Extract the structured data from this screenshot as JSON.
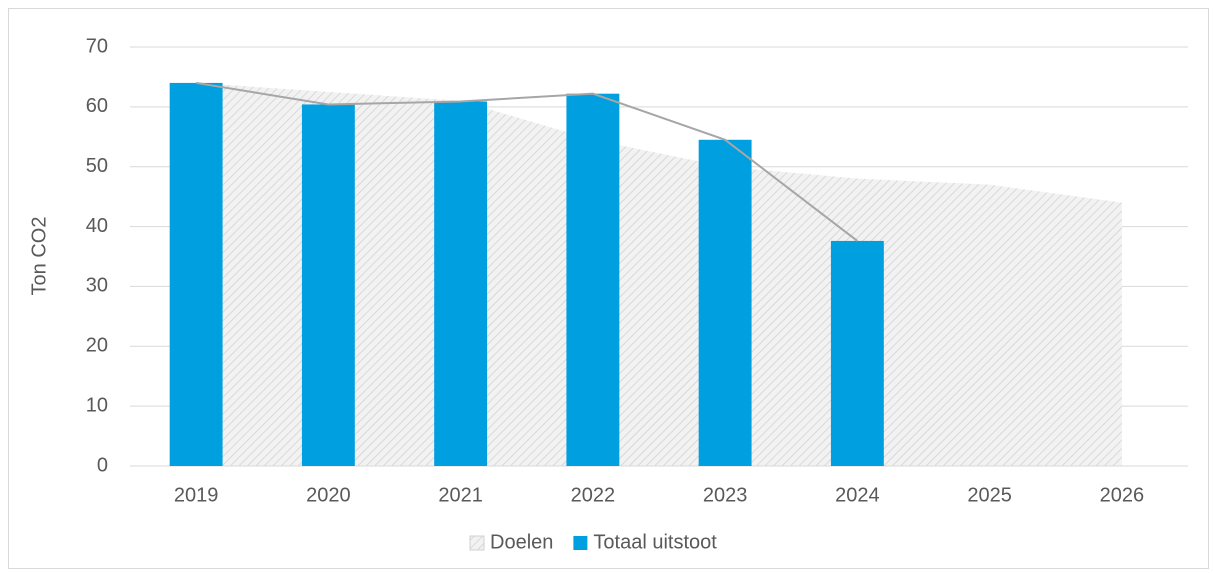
{
  "chart_data": {
    "type": "bar-area",
    "y_label": "Ton CO2",
    "categories": [
      "2019",
      "2020",
      "2021",
      "2022",
      "2023",
      "2024",
      "2025",
      "2026"
    ],
    "series": [
      {
        "name": "Doelen",
        "type": "area",
        "color": "#d9d9d9",
        "values": [
          64,
          62.5,
          61,
          54.5,
          50,
          48,
          47,
          44
        ]
      },
      {
        "name": "Totaal uitstoot",
        "type": "bar",
        "color": "#009fe0",
        "values": [
          64,
          60.4,
          60.9,
          62.2,
          54.5,
          37.6,
          null,
          null
        ]
      }
    ],
    "ylim": [
      0,
      70
    ],
    "yticks": [
      0,
      10,
      20,
      30,
      40,
      50,
      60,
      70
    ],
    "grid": true,
    "legend": "bottom"
  }
}
